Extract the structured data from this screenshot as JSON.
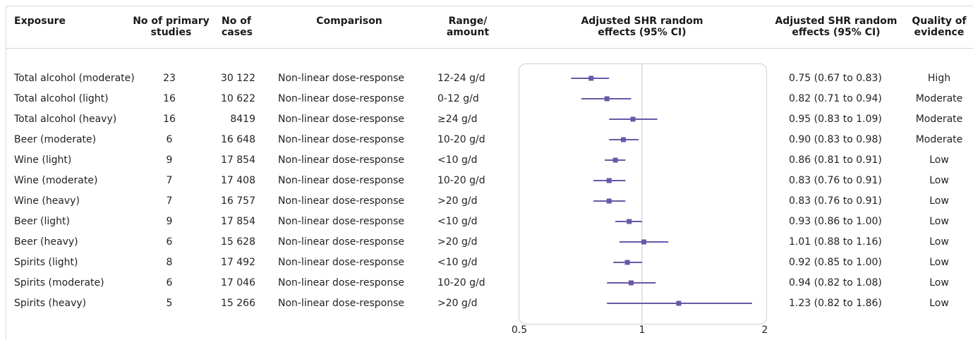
{
  "headers": {
    "exposure": "Exposure",
    "primary_studies": "No of primary studies",
    "cases": "No of cases",
    "comparison": "Comparison",
    "range": "Range/ amount",
    "plot": "Adjusted SHR random effects (95% CI)",
    "estimate": "Adjusted SHR random effects (95% CI)",
    "quality": "Quality of evidence"
  },
  "rows": [
    {
      "exposure": "Total alcohol (moderate)",
      "studies": "23",
      "cases": "30 122",
      "comparison": "Non-linear dose-response",
      "range": "12-24 g/d",
      "estimate": "0.75 (0.67 to 0.83)",
      "quality": "High"
    },
    {
      "exposure": "Total alcohol (light)",
      "studies": "16",
      "cases": "10 622",
      "comparison": "Non-linear dose-response",
      "range": "0-12 g/d",
      "estimate": "0.82 (0.71 to 0.94)",
      "quality": "Moderate"
    },
    {
      "exposure": "Total alcohol (heavy)",
      "studies": "16",
      "cases": "8419",
      "comparison": "Non-linear dose-response",
      "range": "≥24 g/d",
      "estimate": "0.95 (0.83 to 1.09)",
      "quality": "Moderate"
    },
    {
      "exposure": "Beer (moderate)",
      "studies": "6",
      "cases": "16 648",
      "comparison": "Non-linear dose-response",
      "range": "10-20 g/d",
      "estimate": "0.90 (0.83 to 0.98)",
      "quality": "Moderate"
    },
    {
      "exposure": "Wine (light)",
      "studies": "9",
      "cases": "17 854",
      "comparison": "Non-linear dose-response",
      "range": "<10 g/d",
      "estimate": "0.86 (0.81 to 0.91)",
      "quality": "Low"
    },
    {
      "exposure": "Wine (moderate)",
      "studies": "7",
      "cases": "17 408",
      "comparison": "Non-linear dose-response",
      "range": "10-20 g/d",
      "estimate": "0.83 (0.76 to 0.91)",
      "quality": "Low"
    },
    {
      "exposure": "Wine (heavy)",
      "studies": "7",
      "cases": "16 757",
      "comparison": "Non-linear dose-response",
      "range": ">20 g/d",
      "estimate": "0.83 (0.76 to 0.91)",
      "quality": "Low"
    },
    {
      "exposure": "Beer (light)",
      "studies": "9",
      "cases": "17 854",
      "comparison": "Non-linear dose-response",
      "range": "<10 g/d",
      "estimate": "0.93 (0.86 to 1.00)",
      "quality": "Low"
    },
    {
      "exposure": "Beer (heavy)",
      "studies": "6",
      "cases": "15 628",
      "comparison": "Non-linear dose-response",
      "range": ">20 g/d",
      "estimate": "1.01 (0.88 to 1.16)",
      "quality": "Low"
    },
    {
      "exposure": "Spirits (light)",
      "studies": "8",
      "cases": "17 492",
      "comparison": "Non-linear dose-response",
      "range": "<10 g/d",
      "estimate": "0.92 (0.85 to 1.00)",
      "quality": "Low"
    },
    {
      "exposure": "Spirits (moderate)",
      "studies": "6",
      "cases": "17 046",
      "comparison": "Non-linear dose-response",
      "range": "10-20 g/d",
      "estimate": "0.94 (0.82 to 1.08)",
      "quality": "Low"
    },
    {
      "exposure": "Spirits (heavy)",
      "studies": "5",
      "cases": "15 266",
      "comparison": "Non-linear dose-response",
      "range": ">20 g/d",
      "estimate": "1.23 (0.82 to 1.86)",
      "quality": "Low"
    }
  ],
  "chart_data": {
    "type": "scatter",
    "subtype": "forest_plot",
    "title": "",
    "xlabel": "Adjusted SHR random effects (95% CI)",
    "xscale": "log",
    "xlim": [
      0.5,
      2
    ],
    "xticks": [
      0.5,
      1,
      2
    ],
    "xtick_labels": [
      "0.5",
      "1",
      "2"
    ],
    "reference_line": 1,
    "marker_color": "#6a57a8",
    "categories": [
      "Total alcohol (moderate)",
      "Total alcohol (light)",
      "Total alcohol (heavy)",
      "Beer (moderate)",
      "Wine (light)",
      "Wine (moderate)",
      "Wine (heavy)",
      "Beer (light)",
      "Beer (heavy)",
      "Spirits (light)",
      "Spirits (moderate)",
      "Spirits (heavy)"
    ],
    "point": [
      0.75,
      0.82,
      0.95,
      0.9,
      0.86,
      0.83,
      0.83,
      0.93,
      1.01,
      0.92,
      0.94,
      1.23
    ],
    "lower": [
      0.67,
      0.71,
      0.83,
      0.83,
      0.81,
      0.76,
      0.76,
      0.86,
      0.88,
      0.85,
      0.82,
      0.82
    ],
    "upper": [
      0.83,
      0.94,
      1.09,
      0.98,
      0.91,
      0.91,
      0.91,
      1.0,
      1.16,
      1.0,
      1.08,
      1.86
    ]
  }
}
